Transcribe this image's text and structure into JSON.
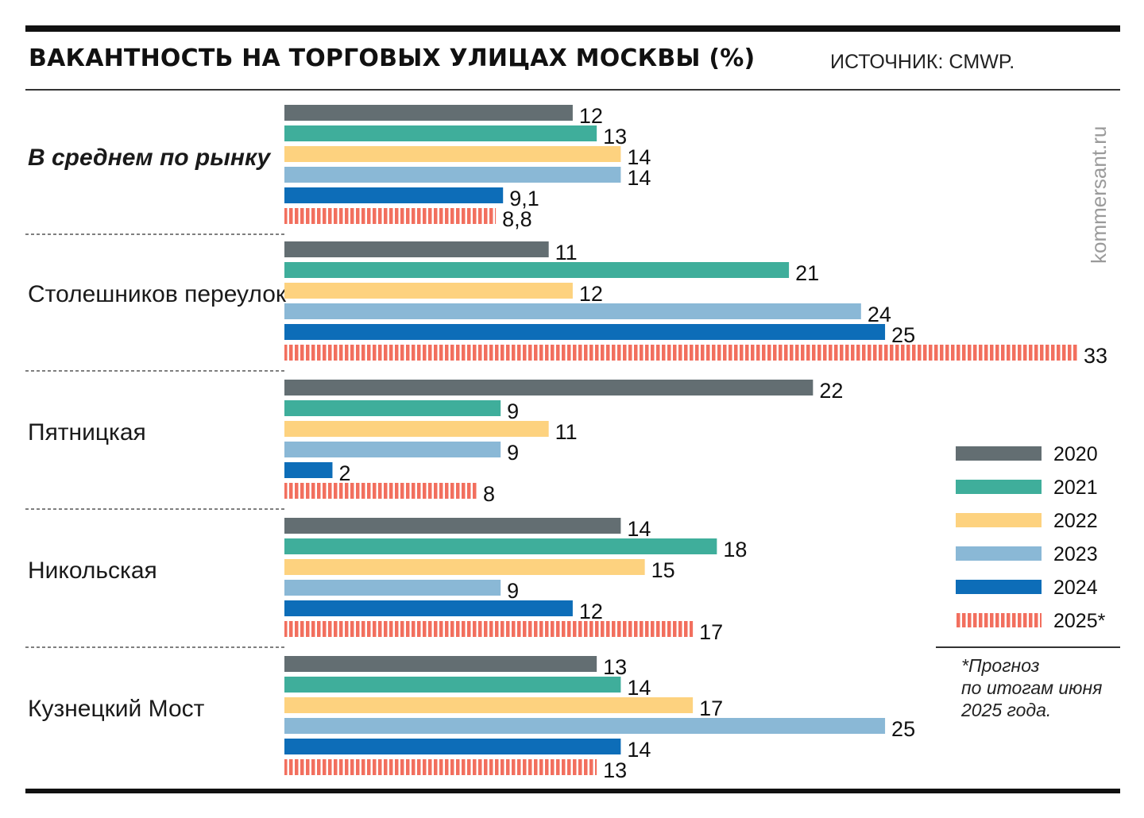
{
  "header": {
    "title": "ВАКАНТНОСТЬ НА ТОРГОВЫХ УЛИЦАХ МОСКВЫ (%)",
    "source": "ИСТОЧНИК: CMWP."
  },
  "watermark": "kommersant.ru",
  "note": {
    "line1": "*Прогноз",
    "line2": "по итогам июня",
    "line3": "2025 года."
  },
  "colors": {
    "2020": "#636e72",
    "2021": "#3fae9b",
    "2022": "#fdd27f",
    "2023": "#8ab8d6",
    "2024": "#0d6db8",
    "2025*": "#f26f5e"
  },
  "chart_data": {
    "type": "bar",
    "orientation": "horizontal",
    "title": "ВАКАНТНОСТЬ НА ТОРГОВЫХ УЛИЦАХ МОСКВЫ (%)",
    "categories": [
      "В среднем по рынку",
      "Столешников переулок",
      "Пятницкая",
      "Никольская",
      "Кузнецкий Мост"
    ],
    "xlim": [
      0,
      33
    ],
    "grid": false,
    "legend_position": "right",
    "series": [
      {
        "name": "2020",
        "values": [
          12,
          11,
          22,
          14,
          13
        ],
        "labels": [
          "12",
          "11",
          "22",
          "14",
          "13"
        ],
        "pattern": "solid"
      },
      {
        "name": "2021",
        "values": [
          13,
          21,
          9,
          18,
          14
        ],
        "labels": [
          "13",
          "21",
          "9",
          "18",
          "14"
        ],
        "pattern": "solid"
      },
      {
        "name": "2022",
        "values": [
          14,
          12,
          11,
          15,
          17
        ],
        "labels": [
          "14",
          "12",
          "11",
          "15",
          "17"
        ],
        "pattern": "solid"
      },
      {
        "name": "2023",
        "values": [
          14,
          24,
          9,
          9,
          25
        ],
        "labels": [
          "14",
          "24",
          "9",
          "9",
          "25"
        ],
        "pattern": "solid"
      },
      {
        "name": "2024",
        "values": [
          9.1,
          25,
          2,
          12,
          14
        ],
        "labels": [
          "9,1",
          "25",
          "2",
          "12",
          "14"
        ],
        "pattern": "solid"
      },
      {
        "name": "2025*",
        "values": [
          8.8,
          33,
          8,
          17,
          13
        ],
        "labels": [
          "8,8",
          "33",
          "8",
          "17",
          "13"
        ],
        "pattern": "striped"
      }
    ]
  }
}
